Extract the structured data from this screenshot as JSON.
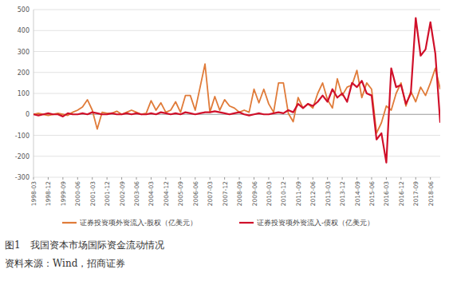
{
  "chart_data": {
    "type": "line",
    "title": "图1　我国资本市场国际资金流动情况",
    "source": "资料来源：Wind，招商证券",
    "categories": [
      "1998-03",
      null,
      null,
      "1998-12",
      null,
      null,
      "1999-09",
      null,
      null,
      "2000-06",
      null,
      null,
      "2001-03",
      null,
      null,
      "2001-12",
      null,
      null,
      "2002-09",
      null,
      null,
      "2003-06",
      null,
      null,
      "2004-03",
      null,
      null,
      "2004-12",
      null,
      null,
      "2005-09",
      null,
      null,
      "2006-06",
      null,
      null,
      "2007-03",
      null,
      null,
      "2007-12",
      null,
      null,
      "2008-09",
      null,
      null,
      "2009-06",
      null,
      null,
      "2010-03",
      null,
      null,
      "2010-12",
      null,
      null,
      "2011-09",
      null,
      null,
      "2012-06",
      null,
      null,
      "2013-03",
      null,
      null,
      "2013-12",
      null,
      null,
      "2014-09",
      null,
      null,
      "2015-06",
      null,
      null,
      "2016-03",
      null,
      null,
      "2016-12",
      null,
      null,
      "2017-09",
      null,
      null,
      "2018-06",
      null,
      null
    ],
    "series": [
      {
        "name": "证券投资项外资流入-股权（亿美元）",
        "color": "#e07b39",
        "values": [
          0,
          5,
          0,
          -5,
          0,
          5,
          0,
          -5,
          10,
          20,
          35,
          70,
          20,
          -70,
          10,
          5,
          5,
          15,
          0,
          10,
          20,
          10,
          0,
          5,
          65,
          20,
          55,
          10,
          20,
          60,
          10,
          90,
          90,
          20,
          130,
          240,
          10,
          85,
          20,
          70,
          40,
          30,
          10,
          20,
          10,
          120,
          55,
          120,
          50,
          10,
          150,
          150,
          5,
          -35,
          80,
          30,
          50,
          30,
          100,
          150,
          70,
          30,
          170,
          90,
          130,
          140,
          210,
          80,
          150,
          120,
          -90,
          -40,
          40,
          20,
          100,
          150,
          40,
          110,
          60,
          130,
          90,
          150,
          220,
          120
        ]
      },
      {
        "name": "证券投资项外资流入-债权（亿美元）",
        "color": "#d0102a",
        "values": [
          0,
          -5,
          0,
          5,
          0,
          0,
          -10,
          5,
          0,
          0,
          5,
          0,
          10,
          5,
          0,
          0,
          5,
          0,
          0,
          5,
          0,
          5,
          0,
          0,
          5,
          0,
          10,
          5,
          0,
          5,
          0,
          10,
          5,
          0,
          5,
          10,
          10,
          15,
          10,
          5,
          0,
          5,
          10,
          0,
          -5,
          0,
          5,
          0,
          0,
          5,
          10,
          5,
          20,
          10,
          50,
          30,
          50,
          40,
          60,
          90,
          60,
          120,
          80,
          100,
          60,
          150,
          130,
          160,
          100,
          90,
          -120,
          -90,
          -230,
          220,
          130,
          140,
          50,
          100,
          460,
          280,
          310,
          440,
          290,
          -40
        ]
      }
    ],
    "ylim": [
      -300,
      500
    ],
    "yticks": [
      -300,
      -200,
      -100,
      0,
      100,
      200,
      300,
      400,
      500
    ],
    "grid": true,
    "legend": "bottom"
  }
}
